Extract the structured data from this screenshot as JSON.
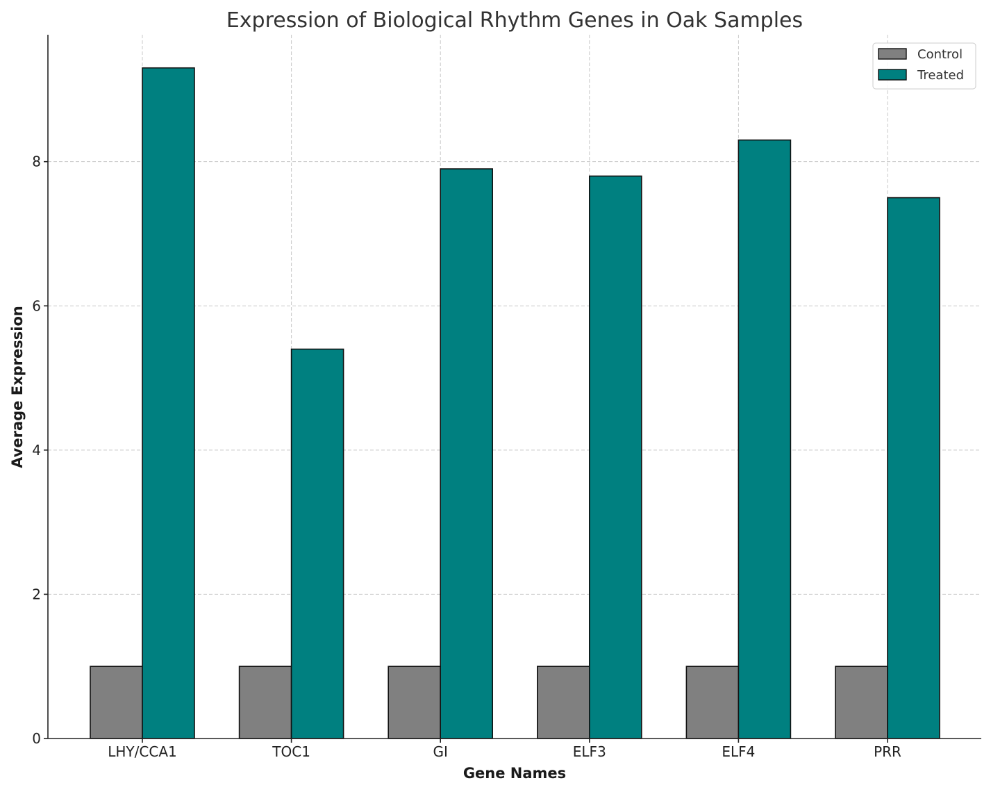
{
  "chart_data": {
    "type": "bar",
    "title": "Expression of Biological Rhythm Genes in Oak Samples",
    "xlabel": "Gene Names",
    "ylabel": "Average Expression",
    "categories": [
      "LHY/CCA1",
      "TOC1",
      "GI",
      "ELF3",
      "ELF4",
      "PRR"
    ],
    "series": [
      {
        "name": "Control",
        "values": [
          1.0,
          1.0,
          1.0,
          1.0,
          1.0,
          1.0
        ],
        "color": "#808080"
      },
      {
        "name": "Treated",
        "values": [
          9.3,
          5.4,
          7.9,
          7.8,
          8.3,
          7.5
        ],
        "color": "#008080"
      }
    ],
    "ylim": [
      0,
      9.76
    ],
    "yticks": [
      0,
      2,
      4,
      6,
      8
    ],
    "grid": true,
    "legend_position": "top-right"
  }
}
